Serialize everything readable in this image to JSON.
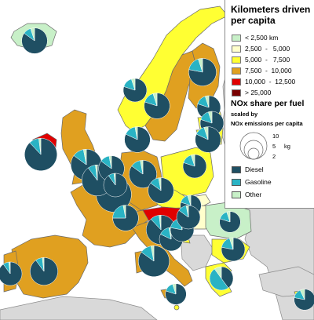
{
  "legend": {
    "title_line1": "Kilometers driven",
    "title_line2": "per capita",
    "km_classes": [
      {
        "label": "< 2,500 km",
        "color": "#c8f0c8"
      },
      {
        "label": "2,500  -   5,000",
        "color": "#ffffcc"
      },
      {
        "label": "5,000  -   7,500",
        "color": "#ffff33"
      },
      {
        "label": "7,500  -  10,000",
        "color": "#e0a020"
      },
      {
        "label": "10,000  -  12,500",
        "color": "#e00000"
      },
      {
        "label": "> 25,000",
        "color": "#7a0000"
      }
    ],
    "nox_title": "NOx share per fuel",
    "scaled_by": "scaled by",
    "emissions_label": "NOx emissions per capita",
    "circle_values": [
      "10",
      "5",
      "2"
    ],
    "unit": "kg",
    "fuels": [
      {
        "label": "Diesel",
        "color": "#1f4f63"
      },
      {
        "label": "Gasoline",
        "color": "#2ab3c4"
      },
      {
        "label": "Other",
        "color": "#c8f0c8"
      }
    ]
  },
  "colors": {
    "sea": "#ffffff",
    "non_data_land": "#d9d9d9",
    "border": "#6a6a6a",
    "diesel": "#1f4f63",
    "gasoline": "#2ab3c4",
    "other": "#c8f0c8"
  },
  "countries": [
    {
      "name": "Iceland",
      "km_class": "< 2,500 km",
      "diesel_share": 0.85,
      "gasoline_share": 0.1,
      "nox_kg": 4
    },
    {
      "name": "Norway",
      "km_class": "5,000 - 7,500",
      "diesel_share": 0.8,
      "gasoline_share": 0.15,
      "nox_kg": 3
    },
    {
      "name": "Sweden",
      "km_class": "7,500 - 10,000",
      "diesel_share": 0.8,
      "gasoline_share": 0.15,
      "nox_kg": 4
    },
    {
      "name": "Finland",
      "km_class": "7,500 - 10,000",
      "diesel_share": 0.78,
      "gasoline_share": 0.17,
      "nox_kg": 5
    },
    {
      "name": "Ireland",
      "km_class": "10,000 - 12,500",
      "diesel_share": 0.88,
      "gasoline_share": 0.1,
      "nox_kg": 8
    },
    {
      "name": "United Kingdom",
      "km_class": "7,500 - 10,000",
      "diesel_share": 0.85,
      "gasoline_share": 0.12,
      "nox_kg": 7
    },
    {
      "name": "Portugal",
      "km_class": "7,500 - 10,000",
      "diesel_share": 0.9,
      "gasoline_share": 0.08,
      "nox_kg": 3
    },
    {
      "name": "Spain",
      "km_class": "7,500 - 10,000",
      "diesel_share": 0.9,
      "gasoline_share": 0.08,
      "nox_kg": 5
    },
    {
      "name": "France",
      "km_class": "7,500 - 10,000",
      "diesel_share": 0.93,
      "gasoline_share": 0.05,
      "nox_kg": 10
    },
    {
      "name": "Belgium",
      "km_class": "7,500 - 10,000",
      "diesel_share": 0.9,
      "gasoline_share": 0.08,
      "nox_kg": 7
    },
    {
      "name": "Netherlands",
      "km_class": "7,500 - 10,000",
      "diesel_share": 0.85,
      "gasoline_share": 0.12,
      "nox_kg": 4
    },
    {
      "name": "Luxembourg",
      "km_class": "> 25,000",
      "diesel_share": 0.9,
      "gasoline_share": 0.08,
      "nox_kg": 3
    },
    {
      "name": "Germany",
      "km_class": "7,500 - 10,000",
      "diesel_share": 0.85,
      "gasoline_share": 0.12,
      "nox_kg": 5
    },
    {
      "name": "Denmark",
      "km_class": "7,500 - 10,000",
      "diesel_share": 0.82,
      "gasoline_share": 0.15,
      "nox_kg": 4
    },
    {
      "name": "Switzerland",
      "km_class": "7,500 - 10,000",
      "diesel_share": 0.75,
      "gasoline_share": 0.22,
      "nox_kg": 4
    },
    {
      "name": "Austria",
      "km_class": "10,000 - 12,500",
      "diesel_share": 0.88,
      "gasoline_share": 0.1,
      "nox_kg": 6
    },
    {
      "name": "Italy",
      "km_class": "7,500 - 10,000",
      "diesel_share": 0.85,
      "gasoline_share": 0.12,
      "nox_kg": 7
    },
    {
      "name": "Slovenia",
      "km_class": "10,000 - 12,500",
      "diesel_share": 0.82,
      "gasoline_share": 0.15,
      "nox_kg": 3
    },
    {
      "name": "Czech Republic",
      "km_class": "5,000 - 7,500",
      "diesel_share": 0.85,
      "gasoline_share": 0.12,
      "nox_kg": 4
    },
    {
      "name": "Poland",
      "km_class": "5,000 - 7,500",
      "diesel_share": 0.8,
      "gasoline_share": 0.15,
      "nox_kg": 3
    },
    {
      "name": "Slovakia",
      "km_class": "2,500 - 5,000",
      "diesel_share": 0.8,
      "gasoline_share": 0.15,
      "nox_kg": 2
    },
    {
      "name": "Hungary",
      "km_class": "2,500 - 5,000",
      "diesel_share": 0.78,
      "gasoline_share": 0.18,
      "nox_kg": 3
    },
    {
      "name": "Croatia",
      "km_class": "5,000 - 7,500",
      "diesel_share": 0.85,
      "gasoline_share": 0.12,
      "nox_kg": 3
    },
    {
      "name": "Romania",
      "km_class": "< 2,500 km",
      "diesel_share": 0.8,
      "gasoline_share": 0.15,
      "nox_kg": 2
    },
    {
      "name": "Bulgaria",
      "km_class": "5,000 - 7,500",
      "diesel_share": 0.78,
      "gasoline_share": 0.17,
      "nox_kg": 3
    },
    {
      "name": "Greece",
      "km_class": "5,000 - 7,500",
      "diesel_share": 0.4,
      "gasoline_share": 0.5,
      "nox_kg": 3
    },
    {
      "name": "Estonia",
      "km_class": "5,000 - 7,500",
      "diesel_share": 0.8,
      "gasoline_share": 0.15,
      "nox_kg": 3
    },
    {
      "name": "Latvia",
      "km_class": "5,000 - 7,500",
      "diesel_share": 0.8,
      "gasoline_share": 0.15,
      "nox_kg": 3
    },
    {
      "name": "Lithuania",
      "km_class": "5,000 - 7,500",
      "diesel_share": 0.82,
      "gasoline_share": 0.13,
      "nox_kg": 4
    },
    {
      "name": "Malta",
      "km_class": "5,000 - 7,500",
      "diesel_share": 0.8,
      "gasoline_share": 0.15,
      "nox_kg": 2
    },
    {
      "name": "Cyprus",
      "km_class": "5,000 - 7,500",
      "diesel_share": 0.78,
      "gasoline_share": 0.15,
      "nox_kg": 2
    }
  ]
}
